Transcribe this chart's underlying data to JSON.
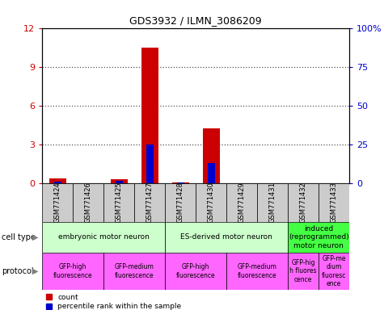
{
  "title": "GDS3932 / ILMN_3086209",
  "samples": [
    "GSM771424",
    "GSM771426",
    "GSM771425",
    "GSM771427",
    "GSM771428",
    "GSM771430",
    "GSM771429",
    "GSM771431",
    "GSM771432",
    "GSM771433"
  ],
  "red_values": [
    0.35,
    0.0,
    0.3,
    10.5,
    0.05,
    4.2,
    0.0,
    0.0,
    0.0,
    0.0
  ],
  "blue_pct": [
    1.0,
    0.0,
    1.5,
    25.0,
    0.4,
    13.0,
    0.0,
    0.0,
    0.0,
    0.0
  ],
  "ylim_left": [
    0,
    12
  ],
  "ylim_right": [
    0,
    100
  ],
  "yticks_left": [
    0,
    3,
    6,
    9,
    12
  ],
  "yticks_right": [
    0,
    25,
    50,
    75,
    100
  ],
  "ytick_right_labels": [
    "0",
    "25",
    "50",
    "75",
    "100%"
  ],
  "cell_type_groups": [
    {
      "label": "embryonic motor neuron",
      "start": 0,
      "end": 4,
      "color": "#ccffcc"
    },
    {
      "label": "ES-derived motor neuron",
      "start": 4,
      "end": 8,
      "color": "#ccffcc"
    },
    {
      "label": "induced\n(reprogrammed)\nmotor neuron",
      "start": 8,
      "end": 10,
      "color": "#44ff44"
    }
  ],
  "protocol_groups": [
    {
      "label": "GFP-high\nfluorescence",
      "start": 0,
      "end": 2,
      "color": "#ff66ff"
    },
    {
      "label": "GFP-medium\nfluorescence",
      "start": 2,
      "end": 4,
      "color": "#ff66ff"
    },
    {
      "label": "GFP-high\nfluorescence",
      "start": 4,
      "end": 6,
      "color": "#ff66ff"
    },
    {
      "label": "GFP-medium\nfluorescence",
      "start": 6,
      "end": 8,
      "color": "#ff66ff"
    },
    {
      "label": "GFP-hig\nh fluores\ncence",
      "start": 8,
      "end": 9,
      "color": "#ff66ff"
    },
    {
      "label": "GFP-me\ndium\nfluoresc\nence",
      "start": 9,
      "end": 10,
      "color": "#ff66ff"
    }
  ],
  "red_color": "#cc0000",
  "blue_color": "#0000cc",
  "bg_color": "#ffffff",
  "left_tick_color": "#cc0000",
  "right_tick_color": "#0000cc",
  "sample_box_color": "#cccccc",
  "grid_dotted_color": "#555555"
}
